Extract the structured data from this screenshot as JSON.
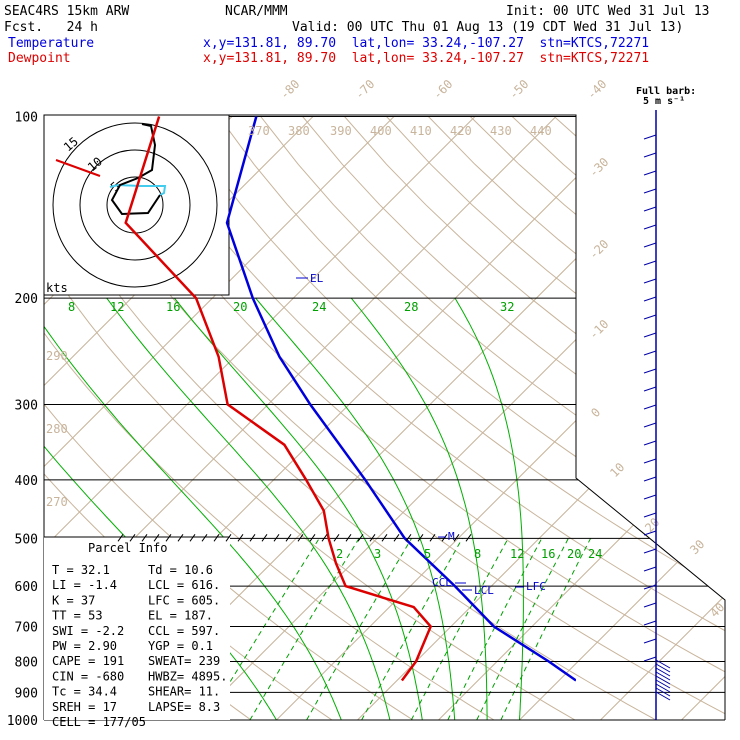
{
  "header": {
    "model": "SEAC4RS 15km ARW",
    "org": "NCAR/MMM",
    "init": "Init: 00 UTC Wed 31 Jul 13",
    "fcst": "Fcst.   24 h",
    "valid": "Valid: 00 UTC Thu 01 Aug 13 (19 CDT Wed 31 Jul 13)",
    "temperature_label": "Temperature",
    "dewpoint_label": "Dewpoint",
    "temperature_loc": "x,y=131.81, 89.70  lat,lon= 33.24,-107.27  stn=KTCS,72271",
    "dewpoint_loc": "x,y=131.81, 89.70  lat,lon= 33.24,-107.27  stn=KTCS,72271",
    "barb_title": "Full barb:",
    "barb_unit": "5 m s⁻¹"
  },
  "colors": {
    "temperature": "#0000dd",
    "dewpoint": "#dd0000",
    "isotherm": "#c8b49b",
    "mixing_ratio": "#00a000",
    "adiabat": "#00b000"
  },
  "chart_data": {
    "type": "line",
    "title": "",
    "pressure_levels": [
      "100",
      "200",
      "300",
      "400",
      "500",
      "600",
      "700",
      "800",
      "900",
      "1000"
    ],
    "isotherm_labels": [
      "-80",
      "-70",
      "-60",
      "-50",
      "-40",
      "-30",
      "-20",
      "-10",
      "0",
      "10",
      "20",
      "30",
      "40"
    ],
    "theta_labels": [
      "370",
      "380",
      "390",
      "400",
      "410",
      "420",
      "430",
      "440",
      "290",
      "280",
      "270"
    ],
    "mixing_ratio_labels_upper": [
      "8",
      "12",
      "16",
      "20",
      "24",
      "28",
      "32"
    ],
    "mixing_ratio_labels_lower": [
      "2",
      "3",
      "5",
      "8",
      "12",
      "16",
      "20",
      "24"
    ],
    "series": [
      {
        "name": "Temperature",
        "pressure": [
          860,
          800,
          700,
          600,
          500,
          400,
          300,
          250,
          200,
          150,
          100
        ],
        "temp": [
          32.1,
          26.4,
          15.3,
          5.5,
          -6.6,
          -18.7,
          -34.8,
          -44.5,
          -55.0,
          -67.5,
          -77.0
        ]
      },
      {
        "name": "Dewpoint",
        "pressure": [
          860,
          800,
          700,
          650,
          600,
          550,
          500,
          450,
          400,
          350,
          300,
          250,
          200,
          150,
          100
        ],
        "temp": [
          10.6,
          10.0,
          7.5,
          3.0,
          -8.0,
          -12.0,
          -16.0,
          -20.0,
          -26.0,
          -33.0,
          -45.0,
          -52.0,
          -62.0,
          -80.0,
          -89.0
        ]
      }
    ],
    "annotations": [
      "EL",
      "M",
      "CCL",
      "LCL",
      "LFC"
    ],
    "hodograph": {
      "ring_labels": [
        "5",
        "10",
        "15"
      ],
      "unit": "kts"
    }
  },
  "parcel_info": {
    "title": "Parcel Info",
    "rows": [
      [
        "T    =   32.1",
        "Td  =  10.6"
      ],
      [
        "LI   =   -1.4",
        "LCL =  616."
      ],
      [
        "K    =     37",
        "LFC =  605."
      ],
      [
        "TT   =     53",
        "EL  =  187."
      ],
      [
        "SWI  =   -2.2",
        "CCL =  597."
      ],
      [
        "PW   =   2.90",
        "YGP =   0.1"
      ],
      [
        "CAPE =    191",
        "SWEAT=  239"
      ],
      [
        "CIN  =   -680",
        "HWBZ= 4895."
      ],
      [
        "Tc   =   34.4",
        "SHEAR=  11."
      ],
      [
        "SREH =     17",
        "LAPSE=  8.3"
      ],
      [
        "CELL = 177/05",
        ""
      ]
    ]
  }
}
